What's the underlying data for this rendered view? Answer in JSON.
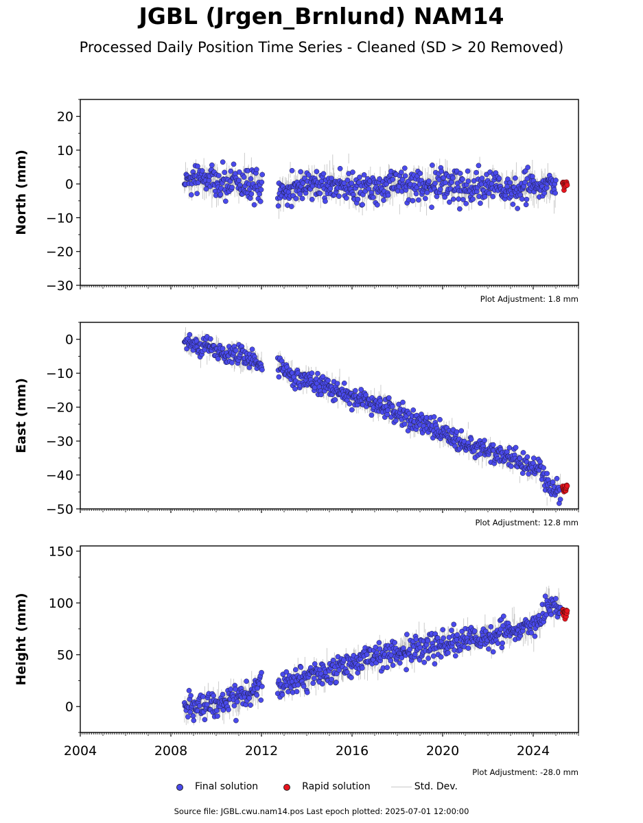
{
  "title": "JGBL (Jrgen_Brnlund) NAM14",
  "subtitle": "Processed Daily Position Time Series - Cleaned (SD > 20 Removed)",
  "footer": "Source file: JGBL.cwu.nam14.pos  Last epoch plotted: 2025-07-01 12:00:00",
  "legend": {
    "final": "Final solution",
    "rapid": "Rapid solution",
    "std": "Std. Dev."
  },
  "colors": {
    "final": "#4a4aec",
    "rapid": "#e8141e",
    "std": "#808080"
  },
  "chart_data": [
    {
      "type": "scatter",
      "ylabel": "North (mm)",
      "xlim": [
        2004,
        2026
      ],
      "ylim": [
        -30,
        25
      ],
      "yticks": [
        20,
        10,
        0,
        -10,
        -20,
        -30
      ],
      "xticks": [],
      "adjustment": "Plot Adjustment: 1.8 mm",
      "series": [
        {
          "name": "Final solution",
          "values": [
            [
              2008.6,
              0.5
            ],
            [
              2009.2,
              2.5
            ],
            [
              2010.0,
              0.0
            ],
            [
              2011.0,
              0.5
            ],
            [
              2012.0,
              -1.0
            ],
            [
              2012.8,
              -2.0
            ],
            [
              2014.0,
              -0.5
            ],
            [
              2015.0,
              0.0
            ],
            [
              2016.0,
              -1.0
            ],
            [
              2017.0,
              -1.5
            ],
            [
              2018.0,
              0.0
            ],
            [
              2019.0,
              -0.5
            ],
            [
              2020.0,
              0.5
            ],
            [
              2021.0,
              -1.5
            ],
            [
              2022.0,
              -0.5
            ],
            [
              2023.0,
              -1.5
            ],
            [
              2024.0,
              -1.0
            ],
            [
              2025.0,
              -0.5
            ]
          ]
        },
        {
          "name": "Rapid solution",
          "values": [
            [
              2025.3,
              -0.5
            ],
            [
              2025.5,
              -0.5
            ]
          ]
        }
      ],
      "scatter_sd": 2.2
    },
    {
      "type": "scatter",
      "ylabel": "East (mm)",
      "xlim": [
        2004,
        2026
      ],
      "ylim": [
        -50,
        5
      ],
      "yticks": [
        0,
        -10,
        -20,
        -30,
        -40,
        -50
      ],
      "xticks": [],
      "adjustment": "Plot Adjustment: 12.8 mm",
      "series": [
        {
          "name": "Final solution",
          "values": [
            [
              2008.6,
              -1.0
            ],
            [
              2009.5,
              -2.0
            ],
            [
              2010.5,
              -4.0
            ],
            [
              2011.5,
              -6.0
            ],
            [
              2012.0,
              -7.5
            ],
            [
              2012.8,
              -8.0
            ],
            [
              2013.5,
              -11.0
            ],
            [
              2014.5,
              -13.0
            ],
            [
              2015.5,
              -16.0
            ],
            [
              2016.5,
              -18.0
            ],
            [
              2017.5,
              -20.0
            ],
            [
              2018.5,
              -24.0
            ],
            [
              2019.5,
              -26.0
            ],
            [
              2020.5,
              -29.5
            ],
            [
              2021.5,
              -32.0
            ],
            [
              2022.5,
              -34.0
            ],
            [
              2023.5,
              -36.5
            ],
            [
              2024.3,
              -38.5
            ],
            [
              2024.7,
              -44.0
            ],
            [
              2025.2,
              -44.5
            ]
          ]
        },
        {
          "name": "Rapid solution",
          "values": [
            [
              2025.3,
              -44.5
            ],
            [
              2025.5,
              -44.0
            ]
          ]
        }
      ],
      "scatter_sd": 1.5
    },
    {
      "type": "scatter",
      "ylabel": "Height (mm)",
      "xlim": [
        2004,
        2026
      ],
      "ylim": [
        -25,
        155
      ],
      "yticks": [
        150,
        100,
        50,
        0
      ],
      "xticks": [
        2004,
        2008,
        2012,
        2016,
        2020,
        2024
      ],
      "adjustment": "Plot Adjustment: -28.0 mm",
      "series": [
        {
          "name": "Final solution",
          "values": [
            [
              2008.6,
              -2.0
            ],
            [
              2009.5,
              0.0
            ],
            [
              2010.5,
              5.0
            ],
            [
              2011.5,
              12.0
            ],
            [
              2012.0,
              20.0
            ],
            [
              2012.8,
              18.0
            ],
            [
              2013.5,
              25.0
            ],
            [
              2014.5,
              32.0
            ],
            [
              2015.5,
              38.0
            ],
            [
              2016.5,
              45.0
            ],
            [
              2017.5,
              50.0
            ],
            [
              2018.5,
              55.0
            ],
            [
              2019.5,
              58.0
            ],
            [
              2020.5,
              62.0
            ],
            [
              2021.5,
              66.0
            ],
            [
              2022.5,
              70.0
            ],
            [
              2023.5,
              74.0
            ],
            [
              2024.3,
              80.0
            ],
            [
              2024.7,
              100.0
            ],
            [
              2025.2,
              92.0
            ]
          ]
        },
        {
          "name": "Rapid solution",
          "values": [
            [
              2025.3,
              92.0
            ],
            [
              2025.5,
              90.0
            ]
          ]
        }
      ],
      "scatter_sd": 6.0
    }
  ]
}
